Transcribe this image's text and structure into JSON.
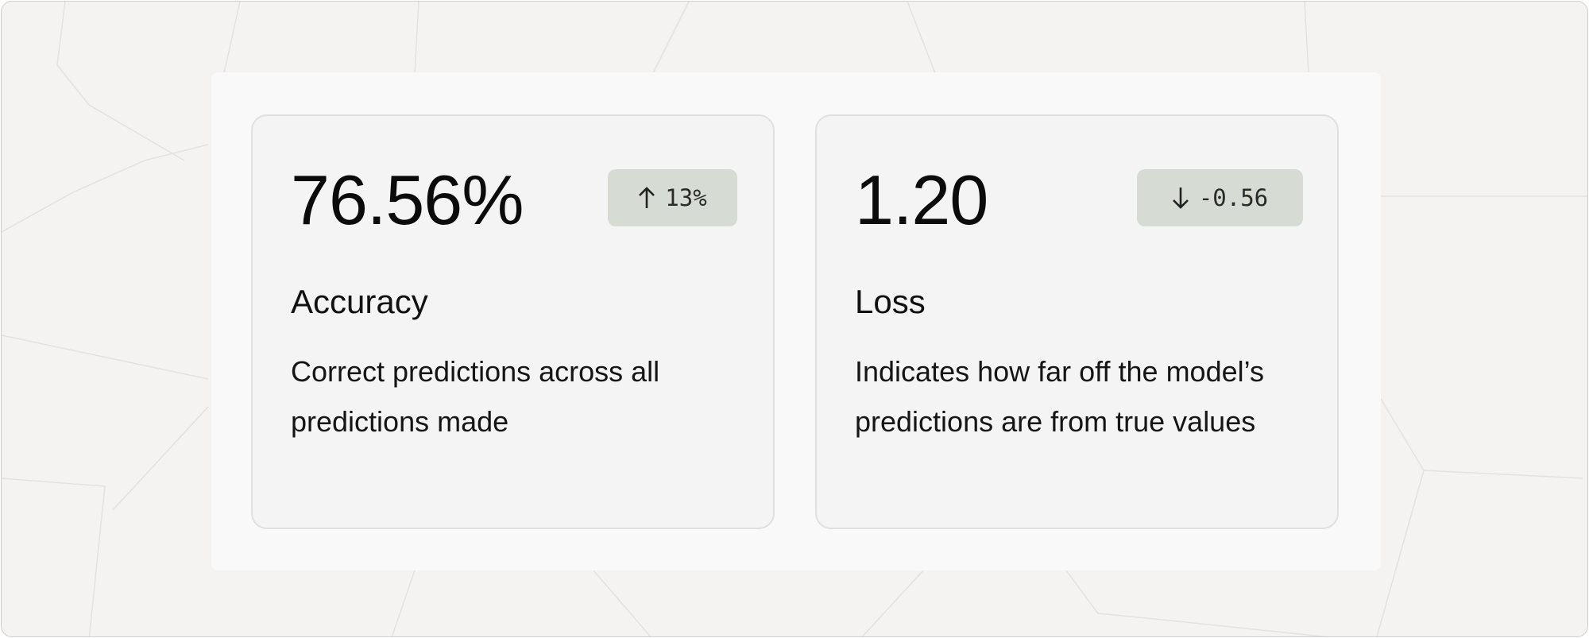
{
  "metrics": [
    {
      "value": "76.56%",
      "change_icon": "arrow-up-icon",
      "change": "13%",
      "title": "Accuracy",
      "description": "Correct predictions across all predictions made"
    },
    {
      "value": "1.20",
      "change_icon": "arrow-down-icon",
      "change": "-0.56",
      "title": "Loss",
      "description": "Indicates how far off the model’s predictions are from true values"
    }
  ],
  "colors": {
    "badge_bg": "#d6dbd4",
    "card_bg": "#f4f4f4",
    "page_bg": "#f4f3f1"
  }
}
